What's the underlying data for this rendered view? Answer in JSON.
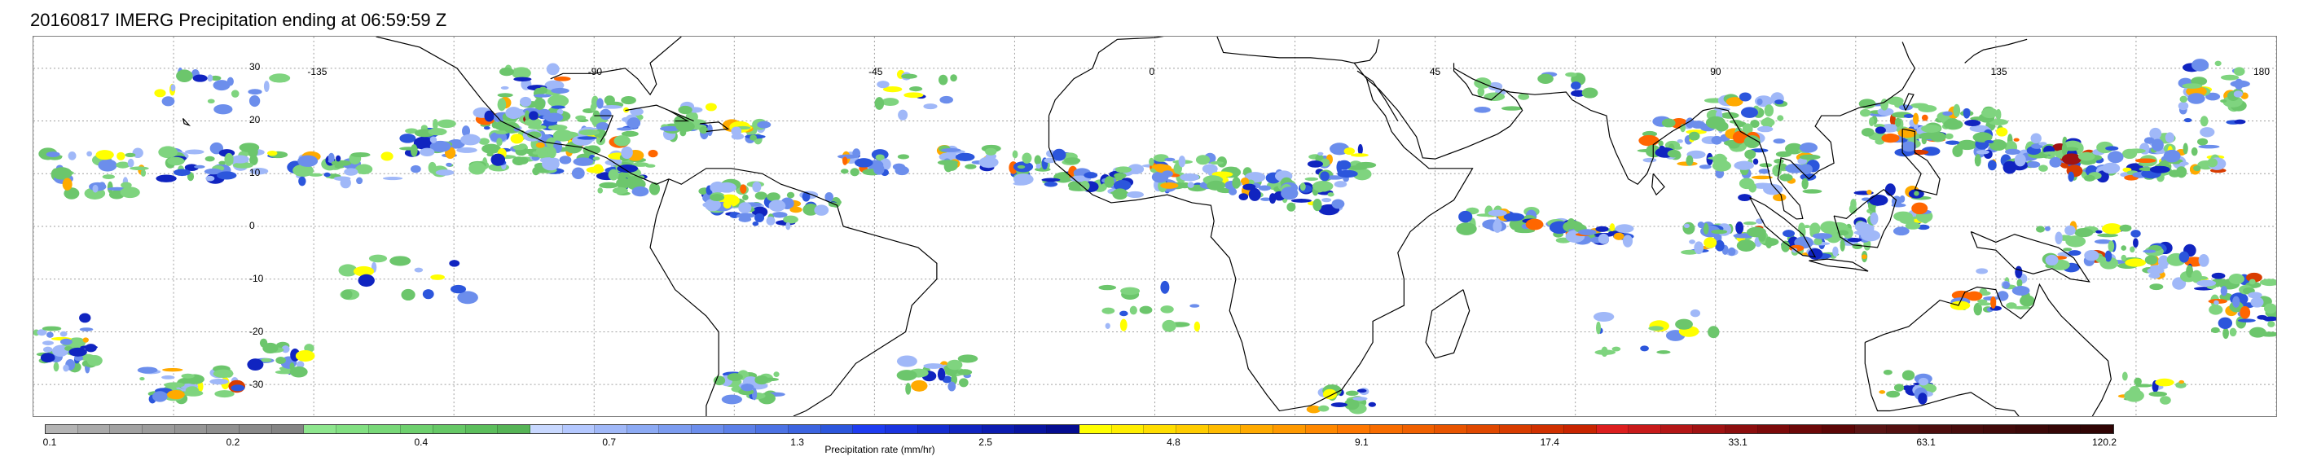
{
  "title": "20160817 IMERG Precipitation ending at 06:59:59 Z",
  "map": {
    "lat_labels": [
      "30",
      "20",
      "10",
      "0",
      "-10",
      "-20",
      "-30"
    ],
    "lon_labels": [
      "-135",
      "-90",
      "-45",
      "0",
      "45",
      "90",
      "135",
      "180"
    ],
    "gridline_color": "#a0a0a0",
    "coastline_color": "#000000"
  },
  "colorbar": {
    "title": "Precipitation rate (mm/hr)",
    "colors": [
      "#b4b4b4",
      "#aaaaaa",
      "#a2a2a2",
      "#9c9c9c",
      "#969696",
      "#909090",
      "#8a8a8a",
      "#848484",
      "#8ee68e",
      "#82e082",
      "#78d878",
      "#6ed06e",
      "#66c866",
      "#5cbe5c",
      "#56b456",
      "#c8d8ff",
      "#b4c8ff",
      "#a0b8f8",
      "#8caaf4",
      "#7c9cf0",
      "#6c8eec",
      "#5c80e8",
      "#4c72e4",
      "#3c64e0",
      "#2c56dc",
      "#1e3cf0",
      "#1a34e0",
      "#142cd0",
      "#1024c0",
      "#0c1cb0",
      "#0814a0",
      "#040c90",
      "#ffff00",
      "#ffee00",
      "#ffdd00",
      "#ffcc00",
      "#ffbb00",
      "#ffaa00",
      "#ff9900",
      "#ff8800",
      "#ff7700",
      "#f86c00",
      "#f06000",
      "#e85400",
      "#e04800",
      "#d83c00",
      "#d03000",
      "#c82400",
      "#dc1e1e",
      "#c81a1a",
      "#b41616",
      "#a01212",
      "#8c0e0e",
      "#7c0a0a",
      "#6c0808",
      "#5c0606",
      "#5a1414",
      "#541010",
      "#4e0e0e",
      "#480c0c",
      "#420a0a",
      "#3c0808",
      "#360606",
      "#300404"
    ],
    "ticks": [
      "0.1",
      "0.2",
      "0.4",
      "0.7",
      "1.3",
      "2.5",
      "4.8",
      "9.1",
      "17.4",
      "33.1",
      "63.1",
      "120.2"
    ]
  }
}
